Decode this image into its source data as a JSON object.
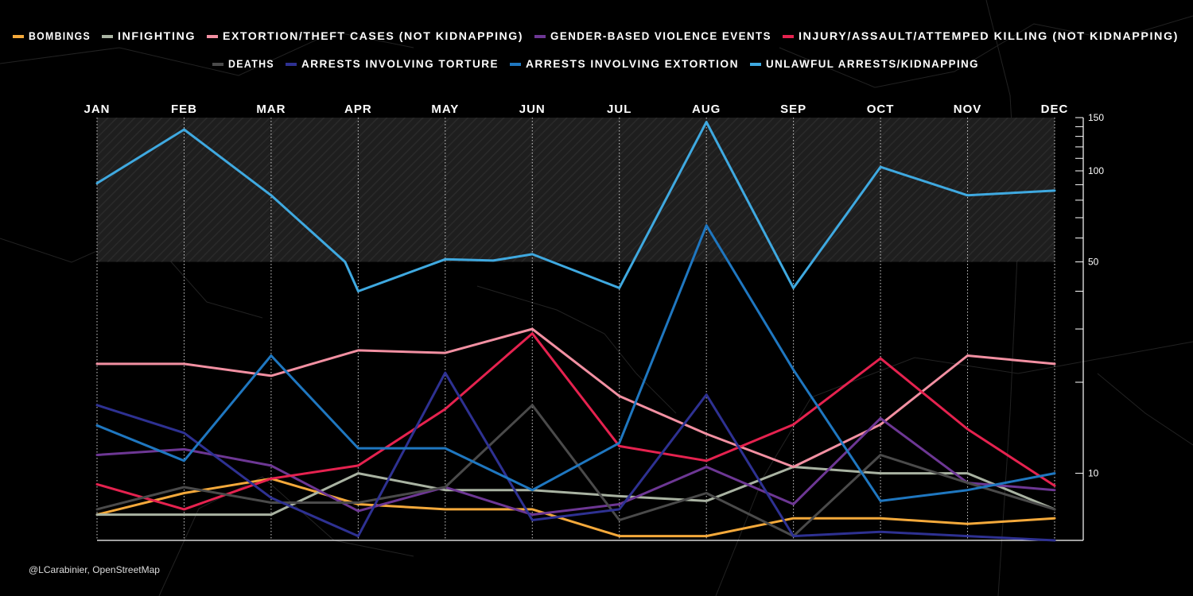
{
  "credit": "@LCarabinier, OpenStreetMap",
  "chart_data": {
    "type": "line",
    "title": "",
    "xlabel": "",
    "ylabel": "",
    "x_scale": "log",
    "ylim": [
      6,
      150
    ],
    "yticks": [
      10,
      50,
      100,
      150
    ],
    "highlight_band": [
      50,
      150
    ],
    "months": [
      "JAN",
      "FEB",
      "MAR",
      "APR",
      "MAY",
      "JUN",
      "JUL",
      "AUG",
      "SEP",
      "OCT",
      "NOV",
      "DEC"
    ],
    "series": [
      {
        "name": "BOMBINGS",
        "color": "#f4a93b",
        "points": [
          [
            0,
            7.3
          ],
          [
            1,
            8.6
          ],
          [
            2,
            9.6
          ],
          [
            3,
            7.9
          ],
          [
            4,
            7.6
          ],
          [
            5,
            7.6
          ],
          [
            6,
            6.2
          ],
          [
            7,
            6.2
          ],
          [
            8,
            7.1
          ],
          [
            9,
            7.1
          ],
          [
            10,
            6.8
          ],
          [
            11,
            7.1
          ]
        ]
      },
      {
        "name": "INFIGHTING",
        "color": "#a9b3a2",
        "points": [
          [
            0,
            7.3
          ],
          [
            1,
            7.3
          ],
          [
            2,
            7.3
          ],
          [
            3,
            10
          ],
          [
            4,
            8.8
          ],
          [
            5,
            8.8
          ],
          [
            6,
            8.4
          ],
          [
            7,
            8.1
          ],
          [
            8,
            10.5
          ],
          [
            9,
            10
          ],
          [
            10,
            10
          ],
          [
            11,
            7.6
          ]
        ]
      },
      {
        "name": "EXTORTION/THEFT CASES (NOT KIDNAPPING)",
        "color": "#f290a2",
        "points": [
          [
            0,
            23
          ],
          [
            1,
            23
          ],
          [
            2,
            21
          ],
          [
            3,
            25.5
          ],
          [
            4,
            25
          ],
          [
            5,
            30
          ],
          [
            6,
            18
          ],
          [
            7,
            13.5
          ],
          [
            8,
            10.5
          ],
          [
            9,
            14.5
          ],
          [
            10,
            24.5
          ],
          [
            11,
            23
          ]
        ]
      },
      {
        "name": "GENDER-BASED VIOLENCE EVENTS",
        "color": "#6d3794",
        "points": [
          [
            0,
            11.5
          ],
          [
            1,
            12
          ],
          [
            2,
            10.6
          ],
          [
            3,
            7.5
          ],
          [
            4,
            9
          ],
          [
            5,
            7.3
          ],
          [
            6,
            7.9
          ],
          [
            7,
            10.5
          ],
          [
            8,
            7.9
          ],
          [
            9,
            15.2
          ],
          [
            10,
            9.3
          ],
          [
            11,
            8.8
          ]
        ]
      },
      {
        "name": "INJURY/ASSAULT/ATTEMPED KILLING (NOT KIDNAPPING)",
        "color": "#e5224f",
        "points": [
          [
            0,
            9.2
          ],
          [
            1,
            7.6
          ],
          [
            2,
            9.6
          ],
          [
            3,
            10.6
          ],
          [
            4,
            16.3
          ],
          [
            5,
            29
          ],
          [
            6,
            12.3
          ],
          [
            7,
            11
          ],
          [
            8,
            14.5
          ],
          [
            9,
            24
          ],
          [
            10,
            14
          ],
          [
            11,
            9.1
          ]
        ]
      },
      {
        "name": "DEATHS",
        "color": "#4a4a4a",
        "points": [
          [
            0,
            7.6
          ],
          [
            1,
            9
          ],
          [
            2,
            8
          ],
          [
            3,
            8
          ],
          [
            4,
            9
          ],
          [
            5,
            16.8
          ],
          [
            6,
            7
          ],
          [
            7,
            8.6
          ],
          [
            8,
            6.2
          ],
          [
            9,
            11.5
          ],
          [
            10,
            9.3
          ],
          [
            11,
            7.6
          ]
        ]
      },
      {
        "name": "ARRESTS INVOLVING TORTURE",
        "color": "#2e3192",
        "points": [
          [
            0,
            16.8
          ],
          [
            1,
            13.6
          ],
          [
            2,
            8.3
          ],
          [
            3,
            6.2
          ],
          [
            4,
            21.5
          ],
          [
            5,
            7
          ],
          [
            6,
            7.6
          ],
          [
            7,
            18.2
          ],
          [
            8,
            6.2
          ],
          [
            9,
            6.4
          ],
          [
            10,
            6.2
          ],
          [
            11,
            6
          ]
        ]
      },
      {
        "name": "ARRESTS INVOLVING EXTORTION",
        "color": "#1f77c0",
        "points": [
          [
            0,
            14.4
          ],
          [
            1,
            11
          ],
          [
            2,
            24.5
          ],
          [
            3,
            12.1
          ],
          [
            4,
            12.1
          ],
          [
            5,
            8.8
          ],
          [
            6,
            12.6
          ],
          [
            7,
            66
          ],
          [
            8,
            22
          ],
          [
            9,
            8.1
          ],
          [
            10,
            8.8
          ],
          [
            11,
            10
          ]
        ]
      },
      {
        "name": "UNLAWFUL ARRESTS/KIDNAPPING",
        "color": "#3fa9e0",
        "points": [
          [
            0,
            91
          ],
          [
            1,
            137
          ],
          [
            2,
            83
          ],
          [
            2.85,
            50
          ],
          [
            3,
            40
          ],
          [
            4,
            51
          ],
          [
            4.55,
            50.5
          ],
          [
            5,
            53
          ],
          [
            6,
            41
          ],
          [
            7,
            145
          ],
          [
            8,
            41
          ],
          [
            9,
            103
          ],
          [
            10,
            83
          ],
          [
            11,
            86
          ]
        ]
      }
    ]
  }
}
